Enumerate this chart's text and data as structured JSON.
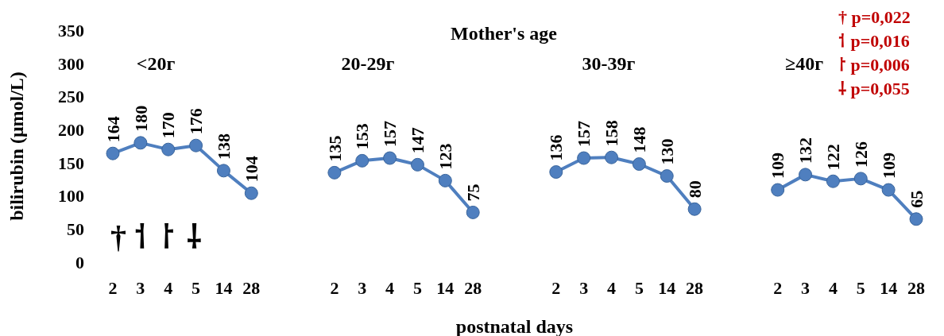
{
  "chart_data": {
    "type": "line",
    "xlabel": "postnatal days",
    "ylabel": "bilirubin (μmol/L)",
    "categories": [
      "2",
      "3",
      "4",
      "5",
      "14",
      "28",
      null,
      null,
      "2",
      "3",
      "4",
      "5",
      "14",
      "28",
      null,
      null,
      "2",
      "3",
      "4",
      "5",
      "14",
      "28",
      null,
      null,
      "2",
      "3",
      "4",
      "5",
      "14",
      "28"
    ],
    "series": [
      {
        "color": "#4f7fbf",
        "values": [
          164,
          180,
          170,
          176,
          138,
          104,
          null,
          null,
          135,
          153,
          157,
          147,
          123,
          75,
          null,
          null,
          136,
          157,
          158,
          148,
          130,
          80,
          null,
          null,
          109,
          132,
          122,
          126,
          109,
          65
        ]
      }
    ],
    "ylim": [
      0,
      350
    ],
    "yticks": [
      0,
      50,
      100,
      150,
      200,
      250,
      300,
      350
    ],
    "marker": "circle",
    "data_labels": true,
    "annotations": [
      "Mother's age",
      "<20г",
      "20-29г",
      "30-39г",
      "≥40г",
      "† p=0,022",
      "⸶ p=0,016",
      "⸷ p=0,006",
      "⸸ p=0,055",
      "†",
      "⸶",
      "⸷",
      "⸸"
    ]
  }
}
